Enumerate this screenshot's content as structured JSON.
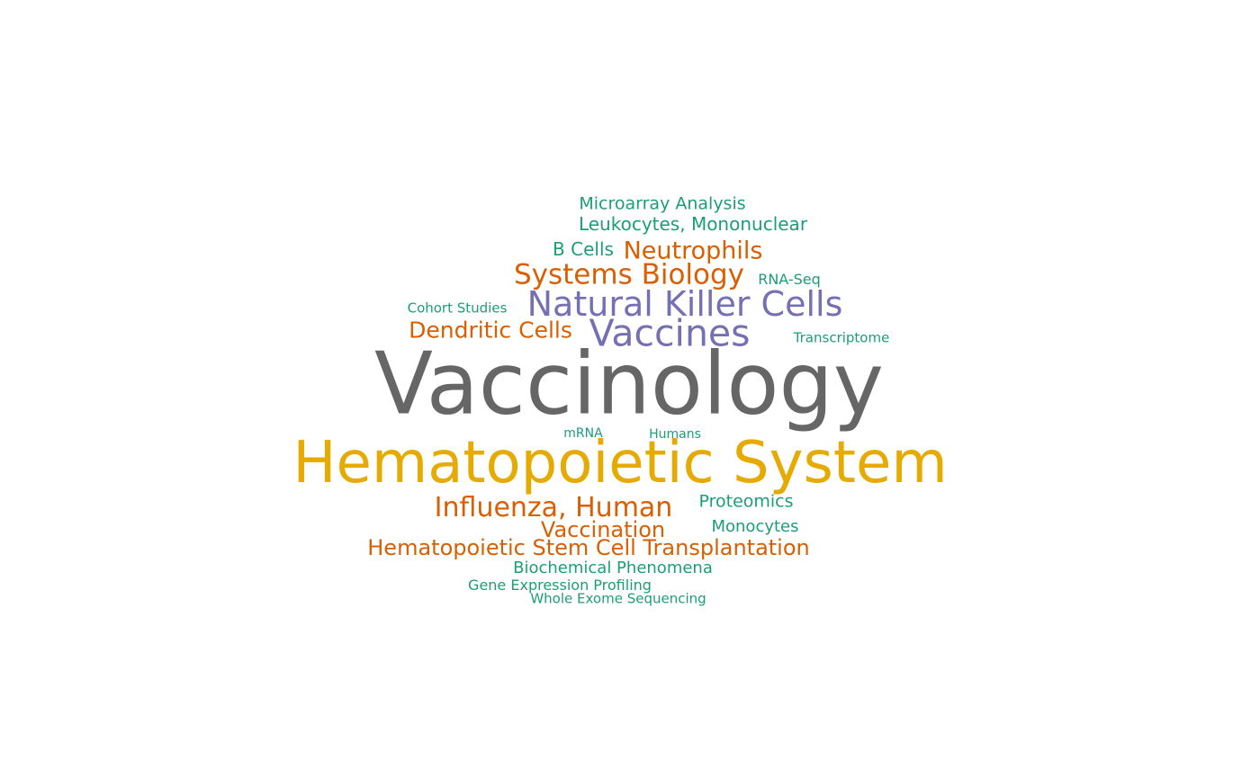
{
  "palette": {
    "gray": "#666666",
    "gold": "#E6AB02",
    "orange": "#D95F02",
    "purple": "#7570B3",
    "teal": "#1B9E77"
  },
  "words": [
    {
      "text": "Microarray Analysis",
      "color": "teal"
    },
    {
      "text": "Leukocytes, Mononuclear",
      "color": "teal"
    },
    {
      "text": "B Cells",
      "color": "teal"
    },
    {
      "text": "Neutrophils",
      "color": "orange"
    },
    {
      "text": "Systems Biology",
      "color": "orange"
    },
    {
      "text": "RNA-Seq",
      "color": "teal"
    },
    {
      "text": "Natural Killer Cells",
      "color": "purple"
    },
    {
      "text": "Cohort Studies",
      "color": "teal"
    },
    {
      "text": "Dendritic Cells",
      "color": "orange"
    },
    {
      "text": "Vaccines",
      "color": "purple"
    },
    {
      "text": "Transcriptome",
      "color": "teal"
    },
    {
      "text": "Vaccinology",
      "color": "gray"
    },
    {
      "text": "mRNA",
      "color": "teal"
    },
    {
      "text": "Humans",
      "color": "teal"
    },
    {
      "text": "Hematopoietic System",
      "color": "gold"
    },
    {
      "text": "Influenza, Human",
      "color": "orange"
    },
    {
      "text": "Proteomics",
      "color": "teal"
    },
    {
      "text": "Vaccination",
      "color": "orange"
    },
    {
      "text": "Monocytes",
      "color": "teal"
    },
    {
      "text": "Hematopoietic Stem Cell Transplantation",
      "color": "orange"
    },
    {
      "text": "Biochemical Phenomena",
      "color": "teal"
    },
    {
      "text": "Gene Expression Profiling",
      "color": "teal"
    },
    {
      "text": "Whole Exome Sequencing",
      "color": "teal"
    }
  ]
}
